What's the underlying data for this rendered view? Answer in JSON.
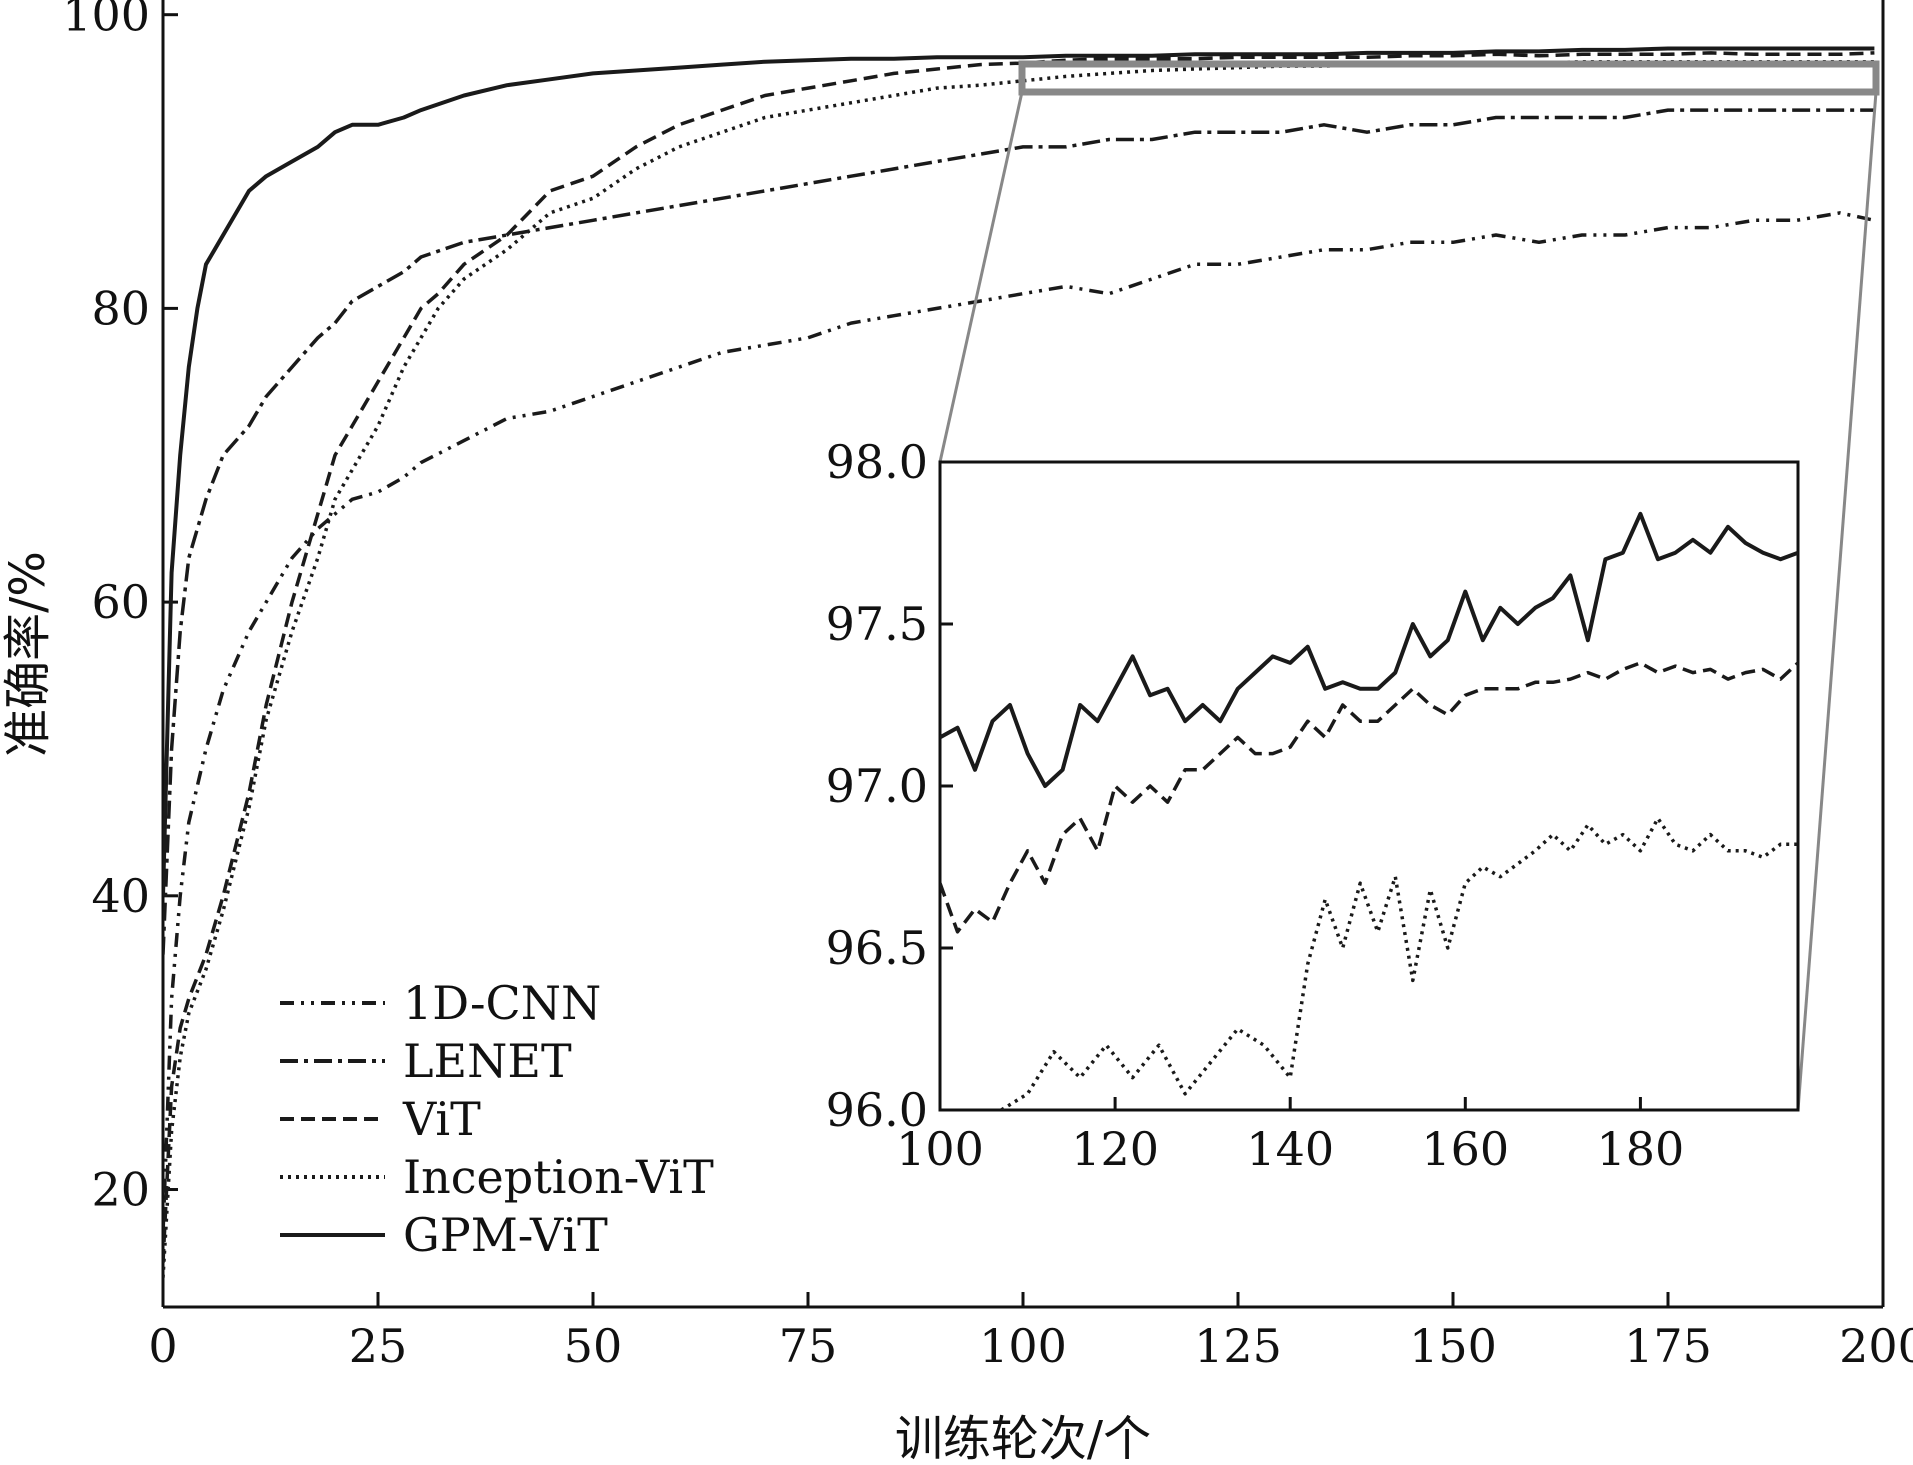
{
  "chart_data": {
    "type": "line",
    "xlabel": "训练轮次/个",
    "ylabel": "准确率/%",
    "xlim": [
      0,
      200
    ],
    "ylim": [
      12,
      101
    ],
    "xticks": [
      0,
      25,
      50,
      75,
      100,
      125,
      150,
      175,
      200
    ],
    "yticks": [
      20,
      40,
      60,
      80,
      100
    ],
    "grid": false,
    "legend_position": "bottom-left",
    "series": [
      {
        "name": "1D-CNN",
        "style": "dash-dot-dot",
        "x": [
          0,
          1,
          2,
          3,
          5,
          7,
          10,
          12,
          15,
          18,
          20,
          22,
          25,
          28,
          30,
          35,
          40,
          45,
          50,
          55,
          60,
          65,
          70,
          75,
          80,
          85,
          90,
          95,
          100,
          105,
          110,
          115,
          120,
          125,
          130,
          135,
          140,
          145,
          150,
          155,
          160,
          165,
          170,
          175,
          180,
          185,
          190,
          195,
          199
        ],
        "y": [
          17,
          33,
          40,
          45,
          50,
          54,
          58,
          60,
          63,
          65,
          66,
          67,
          67.5,
          68.5,
          69.5,
          71,
          72.5,
          73,
          74,
          75,
          76,
          77,
          77.5,
          78,
          79,
          79.5,
          80,
          80.5,
          81,
          81.5,
          81,
          82,
          83,
          83,
          83.5,
          84,
          84,
          84.5,
          84.5,
          85,
          84.5,
          85,
          85,
          85.5,
          85.5,
          86,
          86,
          86.5,
          86
        ]
      },
      {
        "name": "LENET",
        "style": "dash-dot",
        "x": [
          0,
          1,
          2,
          3,
          5,
          7,
          10,
          12,
          15,
          18,
          20,
          22,
          25,
          28,
          30,
          35,
          40,
          45,
          50,
          55,
          60,
          65,
          70,
          75,
          80,
          85,
          90,
          95,
          100,
          105,
          110,
          115,
          120,
          125,
          130,
          135,
          140,
          145,
          150,
          155,
          160,
          165,
          170,
          175,
          180,
          185,
          190,
          195,
          199
        ],
        "y": [
          36,
          50,
          58,
          63,
          67,
          70,
          72,
          74,
          76,
          78,
          79,
          80.5,
          81.5,
          82.5,
          83.5,
          84.5,
          85,
          85.5,
          86,
          86.5,
          87,
          87.5,
          88,
          88.5,
          89,
          89.5,
          90,
          90.5,
          91,
          91,
          91.5,
          91.5,
          92,
          92,
          92,
          92.5,
          92,
          92.5,
          92.5,
          93,
          93,
          93,
          93,
          93.5,
          93.5,
          93.5,
          93.5,
          93.5,
          93.5
        ]
      },
      {
        "name": "ViT",
        "style": "dashed",
        "x": [
          0,
          1,
          2,
          3,
          5,
          7,
          10,
          12,
          15,
          18,
          20,
          22,
          25,
          28,
          30,
          32,
          35,
          40,
          45,
          50,
          55,
          60,
          65,
          70,
          75,
          80,
          85,
          90,
          95,
          100,
          105,
          110,
          115,
          120,
          125,
          130,
          135,
          140,
          145,
          150,
          155,
          160,
          165,
          170,
          175,
          180,
          185,
          190,
          195,
          199
        ],
        "y": [
          15,
          27,
          31,
          33,
          36,
          40,
          47,
          53,
          60,
          66,
          70,
          72,
          75,
          78,
          80,
          81,
          83,
          85,
          88,
          89,
          91,
          92.5,
          93.5,
          94.5,
          95,
          95.5,
          96,
          96.3,
          96.6,
          96.7,
          96.9,
          97.0,
          97.0,
          97.0,
          97.1,
          97.1,
          97.1,
          97.1,
          97.2,
          97.2,
          97.3,
          97.2,
          97.3,
          97.3,
          97.3,
          97.4,
          97.3,
          97.3,
          97.3,
          97.4
        ]
      },
      {
        "name": "Inception-ViT",
        "style": "dotted",
        "x": [
          0,
          1,
          2,
          3,
          5,
          7,
          10,
          12,
          15,
          18,
          20,
          22,
          25,
          28,
          30,
          32,
          35,
          40,
          45,
          50,
          55,
          60,
          65,
          70,
          75,
          80,
          85,
          90,
          95,
          100,
          105,
          110,
          115,
          120,
          125,
          130,
          135,
          140,
          145,
          150,
          155,
          160,
          165,
          170,
          175,
          180,
          185,
          190,
          195,
          199
        ],
        "y": [
          14,
          24,
          29,
          32,
          35,
          39,
          46,
          52,
          58,
          63,
          67,
          69,
          72,
          76,
          78,
          80,
          82,
          84,
          86.5,
          87.5,
          89.5,
          91,
          92,
          93,
          93.5,
          94,
          94.5,
          95,
          95.2,
          95.5,
          95.8,
          96.0,
          96.2,
          96.3,
          96.4,
          96.5,
          96.5,
          96.6,
          96.6,
          96.7,
          96.7,
          96.7,
          96.8,
          96.8,
          96.8,
          96.8,
          96.8,
          96.8,
          96.8,
          96.8
        ]
      },
      {
        "name": "GPM-ViT",
        "style": "solid",
        "x": [
          0,
          1,
          2,
          3,
          4,
          5,
          6,
          8,
          10,
          12,
          15,
          18,
          20,
          22,
          25,
          28,
          30,
          35,
          40,
          45,
          50,
          55,
          60,
          65,
          70,
          75,
          80,
          85,
          90,
          95,
          100,
          105,
          110,
          115,
          120,
          125,
          130,
          135,
          140,
          145,
          150,
          155,
          160,
          165,
          170,
          175,
          180,
          185,
          190,
          195,
          199
        ],
        "y": [
          40,
          62,
          70,
          76,
          80,
          83,
          84,
          86,
          88,
          89,
          90,
          91,
          92,
          92.5,
          92.5,
          93,
          93.5,
          94.5,
          95.2,
          95.6,
          96,
          96.2,
          96.4,
          96.6,
          96.8,
          96.9,
          97.0,
          97.0,
          97.1,
          97.1,
          97.1,
          97.2,
          97.2,
          97.2,
          97.3,
          97.3,
          97.3,
          97.3,
          97.4,
          97.4,
          97.4,
          97.5,
          97.5,
          97.6,
          97.6,
          97.7,
          97.7,
          97.7,
          97.7,
          97.7,
          97.7
        ]
      }
    ],
    "inset": {
      "xlim": [
        100,
        198
      ],
      "ylim": [
        96.0,
        98.0
      ],
      "xticks": [
        100,
        120,
        140,
        160,
        180
      ],
      "ytick_labels": [
        "96.0",
        "96.5",
        "97.0",
        "97.5",
        "98.0"
      ],
      "series": [
        {
          "name": "GPM-ViT",
          "style": "solid",
          "x": [
            100,
            102,
            104,
            106,
            108,
            110,
            112,
            114,
            116,
            118,
            120,
            122,
            124,
            126,
            128,
            130,
            132,
            134,
            136,
            138,
            140,
            142,
            144,
            146,
            148,
            150,
            152,
            154,
            156,
            158,
            160,
            162,
            164,
            166,
            168,
            170,
            172,
            174,
            176,
            178,
            180,
            182,
            184,
            186,
            188,
            190,
            192,
            194,
            196,
            198
          ],
          "y": [
            97.15,
            97.18,
            97.05,
            97.2,
            97.25,
            97.1,
            97.0,
            97.05,
            97.25,
            97.2,
            97.3,
            97.4,
            97.28,
            97.3,
            97.2,
            97.25,
            97.2,
            97.3,
            97.35,
            97.4,
            97.38,
            97.43,
            97.3,
            97.32,
            97.3,
            97.3,
            97.35,
            97.5,
            97.4,
            97.45,
            97.6,
            97.45,
            97.55,
            97.5,
            97.55,
            97.58,
            97.65,
            97.45,
            97.7,
            97.72,
            97.84,
            97.7,
            97.72,
            97.76,
            97.72,
            97.8,
            97.75,
            97.72,
            97.7,
            97.72
          ]
        },
        {
          "name": "ViT",
          "style": "dashed",
          "x": [
            100,
            102,
            104,
            106,
            108,
            110,
            112,
            114,
            116,
            118,
            120,
            122,
            124,
            126,
            128,
            130,
            132,
            134,
            136,
            138,
            140,
            142,
            144,
            146,
            148,
            150,
            152,
            154,
            156,
            158,
            160,
            162,
            164,
            166,
            168,
            170,
            172,
            174,
            176,
            178,
            180,
            182,
            184,
            186,
            188,
            190,
            192,
            194,
            196,
            198
          ],
          "y": [
            96.7,
            96.55,
            96.62,
            96.58,
            96.7,
            96.8,
            96.7,
            96.85,
            96.9,
            96.8,
            97.0,
            96.95,
            97.0,
            96.95,
            97.05,
            97.05,
            97.1,
            97.15,
            97.1,
            97.1,
            97.12,
            97.2,
            97.15,
            97.25,
            97.2,
            97.2,
            97.25,
            97.3,
            97.25,
            97.22,
            97.28,
            97.3,
            97.3,
            97.3,
            97.32,
            97.32,
            97.33,
            97.35,
            97.33,
            97.36,
            97.38,
            97.35,
            97.37,
            97.35,
            97.36,
            97.33,
            97.35,
            97.36,
            97.33,
            97.38
          ]
        },
        {
          "name": "Inception-ViT",
          "style": "dotted",
          "x": [
            107,
            110,
            113,
            116,
            119,
            122,
            125,
            128,
            131,
            134,
            137,
            140,
            142,
            144,
            146,
            148,
            150,
            152,
            154,
            156,
            158,
            160,
            162,
            164,
            166,
            168,
            170,
            172,
            174,
            176,
            178,
            180,
            182,
            184,
            186,
            188,
            190,
            192,
            194,
            196,
            198
          ],
          "y": [
            96.0,
            96.05,
            96.18,
            96.1,
            96.2,
            96.1,
            96.2,
            96.05,
            96.15,
            96.25,
            96.2,
            96.1,
            96.45,
            96.65,
            96.5,
            96.7,
            96.55,
            96.72,
            96.4,
            96.68,
            96.5,
            96.7,
            96.75,
            96.72,
            96.76,
            96.8,
            96.85,
            96.8,
            96.88,
            96.82,
            96.85,
            96.8,
            96.9,
            96.82,
            96.8,
            96.85,
            96.8,
            96.8,
            96.78,
            96.82,
            96.82
          ]
        }
      ]
    }
  }
}
